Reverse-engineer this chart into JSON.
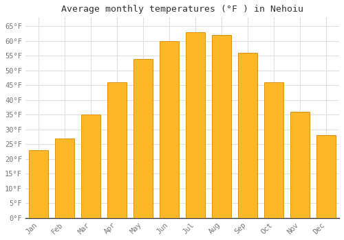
{
  "title": "Average monthly temperatures (°F ) in Nehoiu",
  "months": [
    "Jan",
    "Feb",
    "Mar",
    "Apr",
    "May",
    "Jun",
    "Jul",
    "Aug",
    "Sep",
    "Oct",
    "Nov",
    "Dec"
  ],
  "values": [
    23.0,
    27.0,
    35.0,
    46.0,
    54.0,
    60.0,
    63.0,
    62.0,
    56.0,
    46.0,
    36.0,
    28.0
  ],
  "bar_color": "#FDB827",
  "bar_edge_color": "#E09010",
  "background_color": "#ffffff",
  "plot_bg_color": "#ffffff",
  "grid_color": "#e0e0e0",
  "ylim": [
    0,
    68
  ],
  "yticks": [
    0,
    5,
    10,
    15,
    20,
    25,
    30,
    35,
    40,
    45,
    50,
    55,
    60,
    65
  ],
  "title_fontsize": 9.5,
  "tick_fontsize": 7.5,
  "tick_color": "#777777",
  "title_color": "#333333",
  "title_font": "monospace",
  "tick_font": "monospace",
  "bar_width": 0.75
}
